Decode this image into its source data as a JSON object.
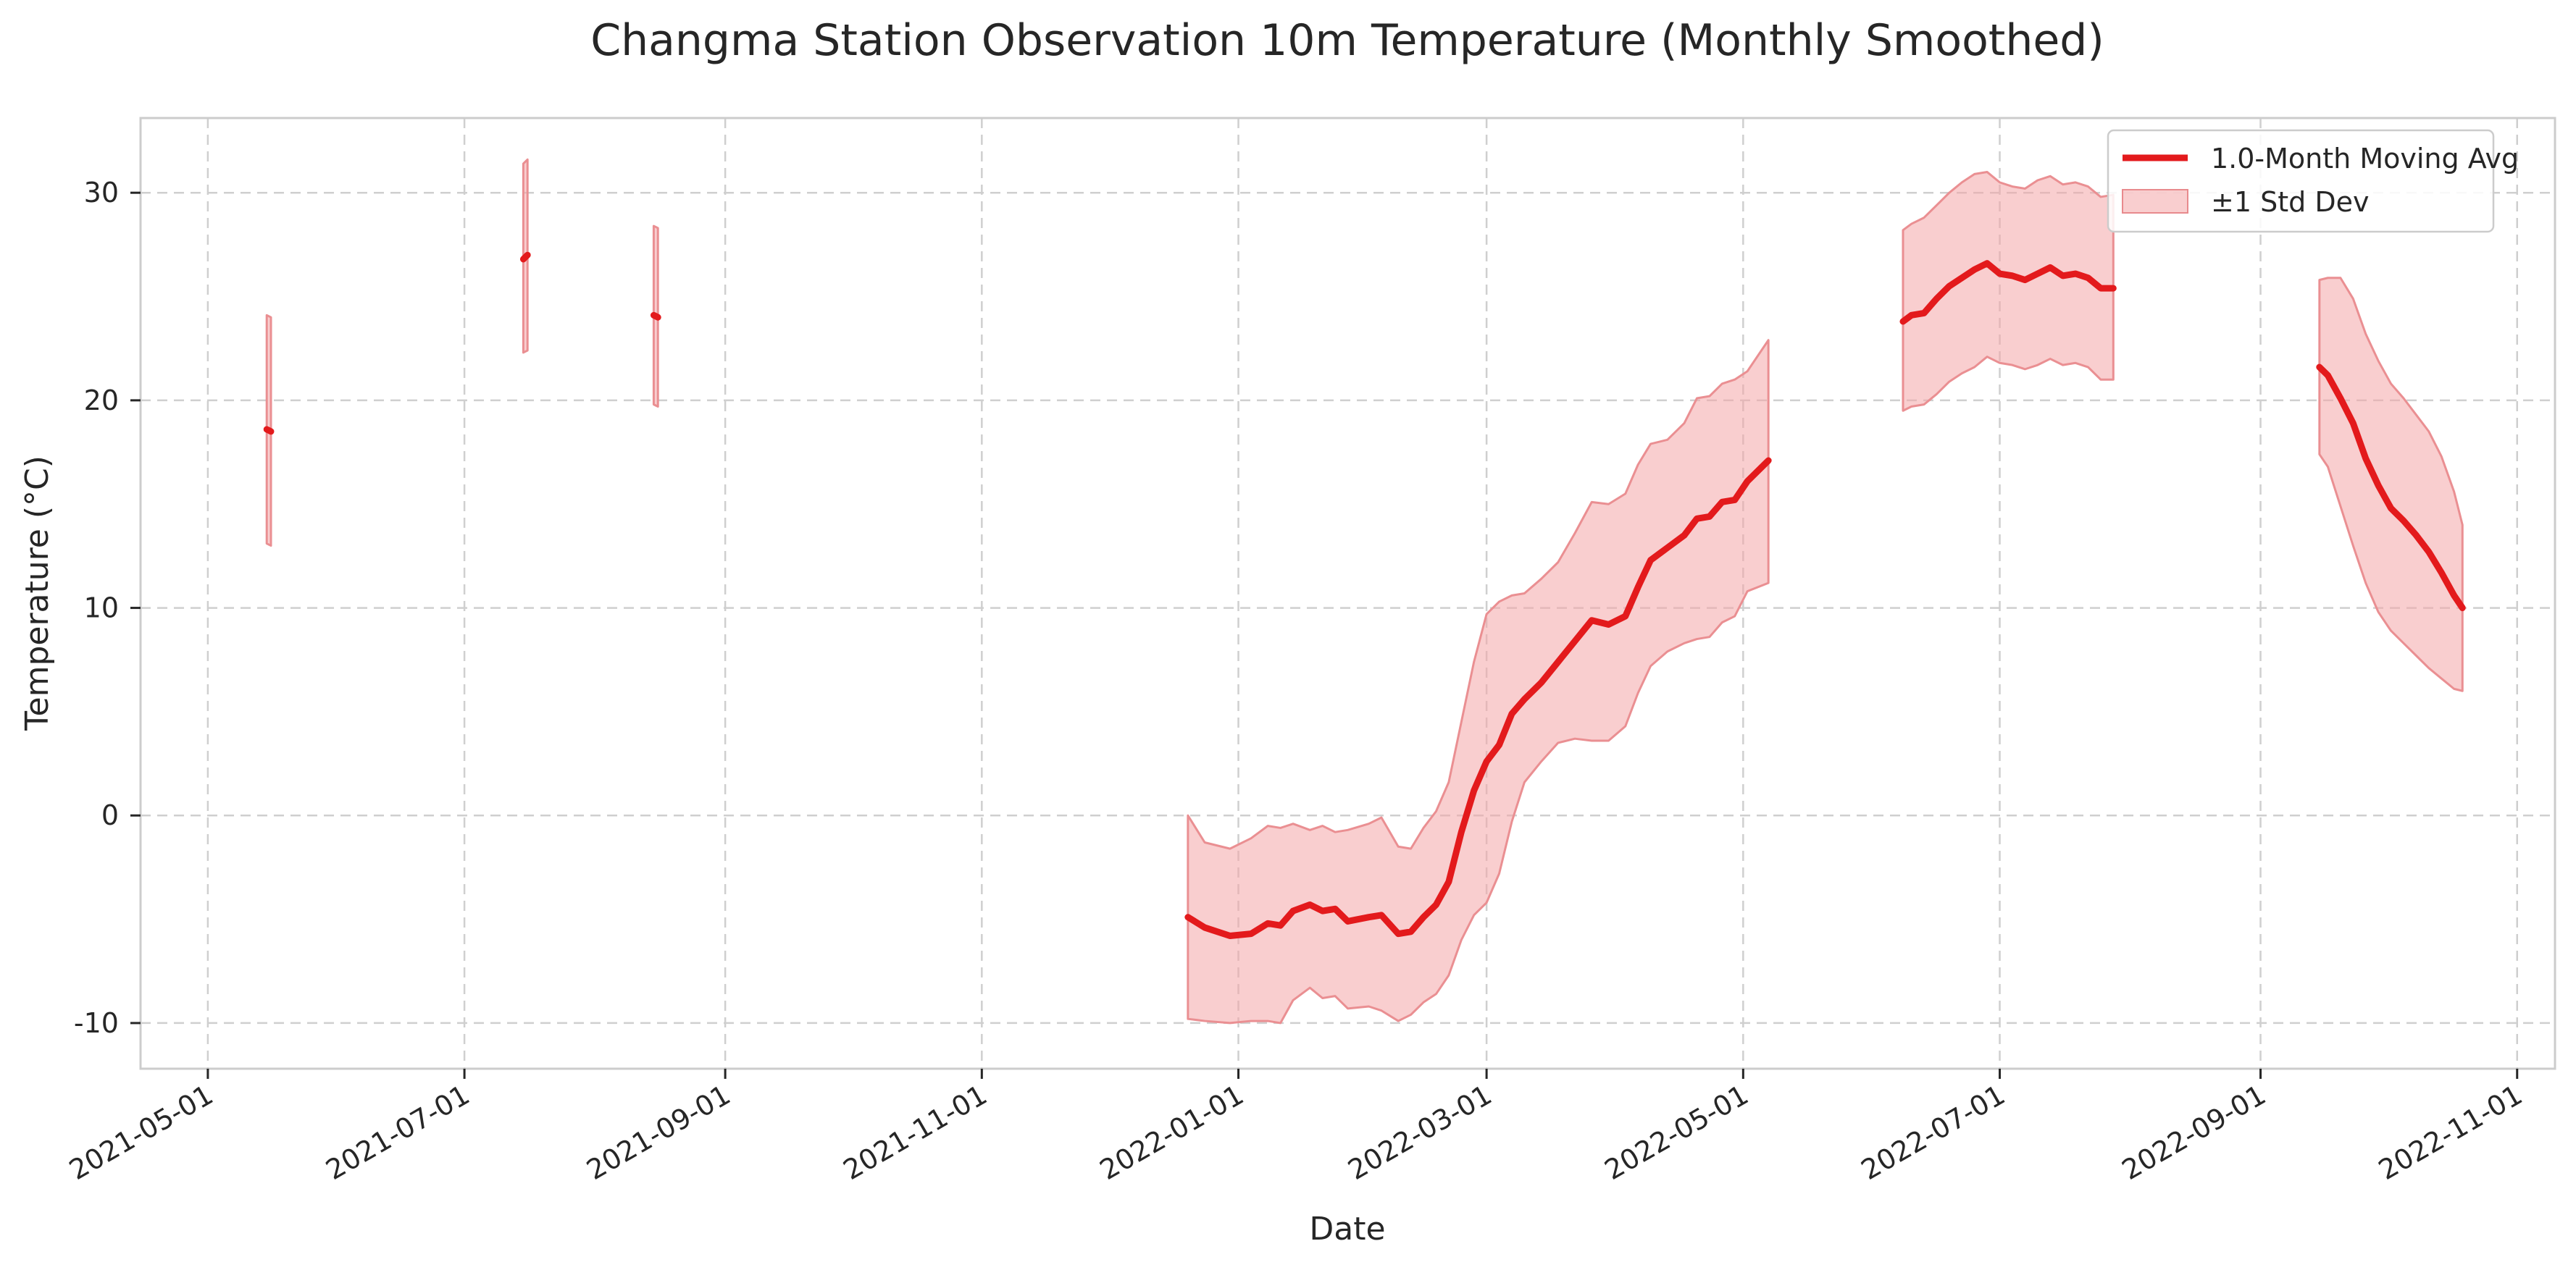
{
  "chart_data": {
    "type": "line",
    "title": "Changma Station Observation 10m Temperature (Monthly Smoothed)",
    "xlabel": "Date",
    "ylabel": "Temperature (°C)",
    "x_axis": "date",
    "xlim": [
      "2021-04-15",
      "2022-11-10"
    ],
    "ylim": [
      -12.2,
      33.6
    ],
    "x_ticks": [
      "2021-05-01",
      "2021-07-01",
      "2021-09-01",
      "2021-11-01",
      "2022-01-01",
      "2022-03-01",
      "2022-05-01",
      "2022-07-01",
      "2022-09-01",
      "2022-11-01"
    ],
    "y_ticks": [
      -10,
      0,
      10,
      20,
      30
    ],
    "y_tick_labels": [
      "-10",
      "0",
      "10",
      "20",
      "30"
    ],
    "grid": true,
    "legend_position": "top-right",
    "colors": {
      "line": "#e31a1c",
      "band": "#f4a6a8"
    },
    "series": [
      {
        "name": "1.0-Month Moving Avg",
        "kind": "line",
        "segments": [
          [
            [
              "2021-05-15",
              18.6
            ],
            [
              "2021-05-16",
              18.5
            ]
          ],
          [
            [
              "2021-07-15",
              26.8
            ],
            [
              "2021-07-16",
              27.0
            ]
          ],
          [
            [
              "2021-08-15",
              24.1
            ],
            [
              "2021-08-16",
              24.0
            ]
          ],
          [
            [
              "2021-12-20",
              -4.9
            ],
            [
              "2021-12-24",
              -5.4
            ],
            [
              "2021-12-30",
              -5.8
            ],
            [
              "2022-01-04",
              -5.7
            ],
            [
              "2022-01-08",
              -5.2
            ],
            [
              "2022-01-11",
              -5.3
            ],
            [
              "2022-01-14",
              -4.6
            ],
            [
              "2022-01-18",
              -4.3
            ],
            [
              "2022-01-21",
              -4.6
            ],
            [
              "2022-01-24",
              -4.5
            ],
            [
              "2022-01-27",
              -5.1
            ],
            [
              "2022-02-01",
              -4.9
            ],
            [
              "2022-02-04",
              -4.8
            ],
            [
              "2022-02-08",
              -5.7
            ],
            [
              "2022-02-11",
              -5.6
            ],
            [
              "2022-02-14",
              -4.9
            ],
            [
              "2022-02-17",
              -4.3
            ],
            [
              "2022-02-20",
              -3.2
            ],
            [
              "2022-02-23",
              -0.8
            ],
            [
              "2022-02-26",
              1.2
            ],
            [
              "2022-03-01",
              2.6
            ],
            [
              "2022-03-04",
              3.4
            ],
            [
              "2022-03-07",
              4.9
            ],
            [
              "2022-03-10",
              5.6
            ],
            [
              "2022-03-14",
              6.4
            ],
            [
              "2022-03-18",
              7.4
            ],
            [
              "2022-03-22",
              8.4
            ],
            [
              "2022-03-26",
              9.4
            ],
            [
              "2022-03-30",
              9.2
            ],
            [
              "2022-04-03",
              9.6
            ],
            [
              "2022-04-06",
              11.0
            ],
            [
              "2022-04-09",
              12.3
            ],
            [
              "2022-04-13",
              12.9
            ],
            [
              "2022-04-17",
              13.5
            ],
            [
              "2022-04-20",
              14.3
            ],
            [
              "2022-04-23",
              14.4
            ],
            [
              "2022-04-26",
              15.1
            ],
            [
              "2022-04-29",
              15.2
            ],
            [
              "2022-05-02",
              16.1
            ],
            [
              "2022-05-07",
              17.1
            ]
          ],
          [
            [
              "2022-06-08",
              23.8
            ],
            [
              "2022-06-10",
              24.1
            ],
            [
              "2022-06-13",
              24.2
            ],
            [
              "2022-06-16",
              24.9
            ],
            [
              "2022-06-19",
              25.5
            ],
            [
              "2022-06-22",
              25.9
            ],
            [
              "2022-06-25",
              26.3
            ],
            [
              "2022-06-28",
              26.6
            ],
            [
              "2022-07-01",
              26.1
            ],
            [
              "2022-07-04",
              26.0
            ],
            [
              "2022-07-07",
              25.8
            ],
            [
              "2022-07-10",
              26.1
            ],
            [
              "2022-07-13",
              26.4
            ],
            [
              "2022-07-16",
              26.0
            ],
            [
              "2022-07-19",
              26.1
            ],
            [
              "2022-07-22",
              25.9
            ],
            [
              "2022-07-25",
              25.4
            ],
            [
              "2022-07-28",
              25.4
            ]
          ],
          [
            [
              "2022-09-15",
              21.6
            ],
            [
              "2022-09-17",
              21.2
            ],
            [
              "2022-09-20",
              20.1
            ],
            [
              "2022-09-23",
              18.9
            ],
            [
              "2022-09-26",
              17.2
            ],
            [
              "2022-09-29",
              15.9
            ],
            [
              "2022-10-02",
              14.8
            ],
            [
              "2022-10-05",
              14.2
            ],
            [
              "2022-10-08",
              13.5
            ],
            [
              "2022-10-11",
              12.7
            ],
            [
              "2022-10-14",
              11.7
            ],
            [
              "2022-10-17",
              10.6
            ],
            [
              "2022-10-19",
              10.0
            ]
          ]
        ]
      },
      {
        "name": "±1 Std Dev",
        "kind": "band",
        "segments": [
          [
            [
              "2021-05-15",
              13.1,
              24.1
            ],
            [
              "2021-05-16",
              13.0,
              24.0
            ]
          ],
          [
            [
              "2021-07-15",
              22.3,
              31.4
            ],
            [
              "2021-07-16",
              22.4,
              31.6
            ]
          ],
          [
            [
              "2021-08-15",
              19.8,
              28.4
            ],
            [
              "2021-08-16",
              19.7,
              28.3
            ]
          ],
          [
            [
              "2021-12-20",
              -9.8,
              0.0
            ],
            [
              "2021-12-24",
              -9.9,
              -1.3
            ],
            [
              "2021-12-30",
              -10.0,
              -1.6
            ],
            [
              "2022-01-04",
              -9.9,
              -1.1
            ],
            [
              "2022-01-08",
              -9.9,
              -0.5
            ],
            [
              "2022-01-11",
              -10.0,
              -0.6
            ],
            [
              "2022-01-14",
              -8.9,
              -0.4
            ],
            [
              "2022-01-18",
              -8.3,
              -0.7
            ],
            [
              "2022-01-21",
              -8.8,
              -0.5
            ],
            [
              "2022-01-24",
              -8.7,
              -0.8
            ],
            [
              "2022-01-27",
              -9.3,
              -0.7
            ],
            [
              "2022-02-01",
              -9.2,
              -0.4
            ],
            [
              "2022-02-04",
              -9.4,
              -0.1
            ],
            [
              "2022-02-08",
              -9.9,
              -1.5
            ],
            [
              "2022-02-11",
              -9.6,
              -1.6
            ],
            [
              "2022-02-14",
              -9.0,
              -0.6
            ],
            [
              "2022-02-17",
              -8.6,
              0.2
            ],
            [
              "2022-02-20",
              -7.7,
              1.6
            ],
            [
              "2022-02-23",
              -6.0,
              4.5
            ],
            [
              "2022-02-26",
              -4.8,
              7.4
            ],
            [
              "2022-03-01",
              -4.2,
              9.7
            ],
            [
              "2022-03-04",
              -2.8,
              10.3
            ],
            [
              "2022-03-07",
              -0.3,
              10.6
            ],
            [
              "2022-03-10",
              1.6,
              10.7
            ],
            [
              "2022-03-14",
              2.6,
              11.4
            ],
            [
              "2022-03-18",
              3.5,
              12.2
            ],
            [
              "2022-03-22",
              3.7,
              13.6
            ],
            [
              "2022-03-26",
              3.6,
              15.1
            ],
            [
              "2022-03-30",
              3.6,
              15.0
            ],
            [
              "2022-04-03",
              4.3,
              15.5
            ],
            [
              "2022-04-06",
              5.9,
              16.9
            ],
            [
              "2022-04-09",
              7.2,
              17.9
            ],
            [
              "2022-04-13",
              7.9,
              18.1
            ],
            [
              "2022-04-17",
              8.3,
              18.9
            ],
            [
              "2022-04-20",
              8.5,
              20.1
            ],
            [
              "2022-04-23",
              8.6,
              20.2
            ],
            [
              "2022-04-26",
              9.3,
              20.8
            ],
            [
              "2022-04-29",
              9.6,
              21.0
            ],
            [
              "2022-05-02",
              10.8,
              21.4
            ],
            [
              "2022-05-07",
              11.2,
              22.9
            ]
          ],
          [
            [
              "2022-06-08",
              19.5,
              28.2
            ],
            [
              "2022-06-10",
              19.7,
              28.5
            ],
            [
              "2022-06-13",
              19.8,
              28.8
            ],
            [
              "2022-06-16",
              20.3,
              29.4
            ],
            [
              "2022-06-19",
              20.9,
              30.0
            ],
            [
              "2022-06-22",
              21.3,
              30.5
            ],
            [
              "2022-06-25",
              21.6,
              30.9
            ],
            [
              "2022-06-28",
              22.1,
              31.0
            ],
            [
              "2022-07-01",
              21.8,
              30.5
            ],
            [
              "2022-07-04",
              21.7,
              30.3
            ],
            [
              "2022-07-07",
              21.5,
              30.2
            ],
            [
              "2022-07-10",
              21.7,
              30.6
            ],
            [
              "2022-07-13",
              22.0,
              30.8
            ],
            [
              "2022-07-16",
              21.7,
              30.4
            ],
            [
              "2022-07-19",
              21.8,
              30.5
            ],
            [
              "2022-07-22",
              21.6,
              30.3
            ],
            [
              "2022-07-25",
              21.0,
              29.8
            ],
            [
              "2022-07-28",
              21.0,
              29.9
            ]
          ],
          [
            [
              "2022-09-15",
              17.4,
              25.8
            ],
            [
              "2022-09-17",
              16.8,
              25.9
            ],
            [
              "2022-09-20",
              14.9,
              25.9
            ],
            [
              "2022-09-23",
              13.0,
              24.9
            ],
            [
              "2022-09-26",
              11.2,
              23.2
            ],
            [
              "2022-09-29",
              9.8,
              21.9
            ],
            [
              "2022-10-02",
              8.9,
              20.8
            ],
            [
              "2022-10-05",
              8.3,
              20.1
            ],
            [
              "2022-10-08",
              7.7,
              19.3
            ],
            [
              "2022-10-11",
              7.1,
              18.5
            ],
            [
              "2022-10-14",
              6.6,
              17.3
            ],
            [
              "2022-10-17",
              6.1,
              15.6
            ],
            [
              "2022-10-19",
              6.0,
              14.0
            ]
          ]
        ]
      }
    ]
  }
}
